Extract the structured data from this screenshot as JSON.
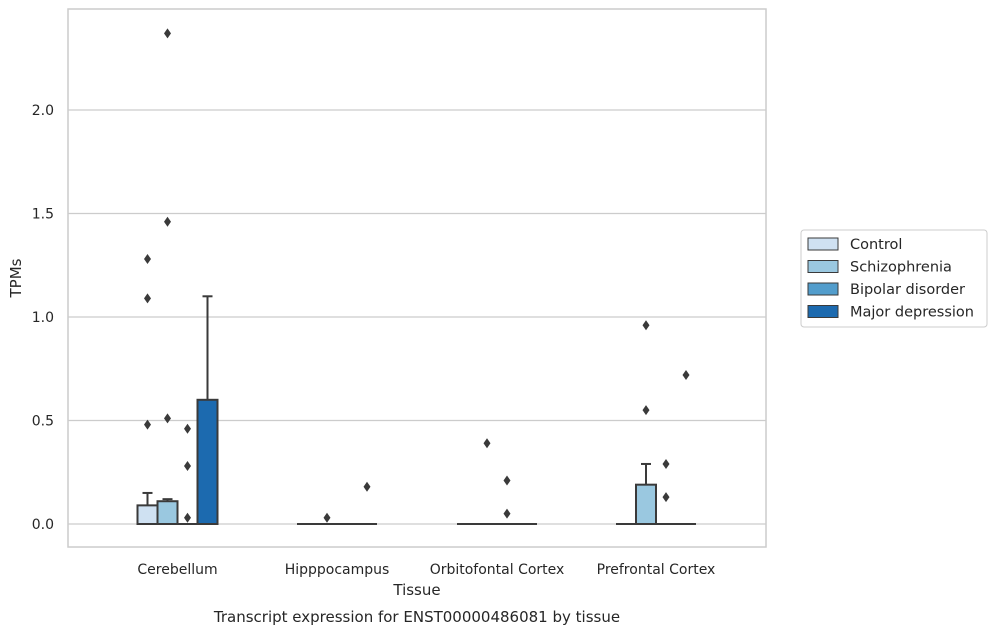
{
  "chart_data": {
    "type": "box",
    "xlabel": "Tissue",
    "ylabel": "TPMs",
    "caption": "Transcript expression for ENST00000486081 by tissue",
    "ylim": [
      -0.115,
      2.5
    ],
    "yticks": [
      0.0,
      0.5,
      1.0,
      1.5,
      2.0
    ],
    "ytick_labels": [
      "0.0",
      "0.5",
      "1.0",
      "1.5",
      "2.0"
    ],
    "grid": "horizontal",
    "legend_position": "right",
    "categories": [
      "Cerebellum",
      "Hipppocampus",
      "Orbitofontal Cortex",
      "Prefrontal Cortex"
    ],
    "series": [
      {
        "name": "Control",
        "color": "#cfe1f2",
        "boxes": [
          {
            "q1": 0.0,
            "median": 0.0,
            "q3": 0.09,
            "whisker_low": 0.0,
            "whisker_high": 0.15,
            "outliers": [
              1.28,
              1.09,
              0.48
            ]
          },
          {
            "q1": 0.0,
            "median": 0.0,
            "q3": 0.0,
            "whisker_low": 0.0,
            "whisker_high": 0.0,
            "outliers": []
          },
          {
            "q1": 0.0,
            "median": 0.0,
            "q3": 0.0,
            "whisker_low": 0.0,
            "whisker_high": 0.0,
            "outliers": []
          },
          {
            "q1": 0.0,
            "median": 0.0,
            "q3": 0.0,
            "whisker_low": 0.0,
            "whisker_high": 0.0,
            "outliers": []
          }
        ]
      },
      {
        "name": "Schizophrenia",
        "color": "#9ac8e0",
        "boxes": [
          {
            "q1": 0.0,
            "median": 0.0,
            "q3": 0.11,
            "whisker_low": 0.0,
            "whisker_high": 0.12,
            "outliers": [
              2.37,
              1.46,
              0.51
            ]
          },
          {
            "q1": 0.0,
            "median": 0.0,
            "q3": 0.0,
            "whisker_low": 0.0,
            "whisker_high": 0.0,
            "outliers": [
              0.03
            ]
          },
          {
            "q1": 0.0,
            "median": 0.0,
            "q3": 0.0,
            "whisker_low": 0.0,
            "whisker_high": 0.0,
            "outliers": [
              0.39
            ]
          },
          {
            "q1": 0.0,
            "median": 0.0,
            "q3": 0.19,
            "whisker_low": 0.0,
            "whisker_high": 0.29,
            "outliers": [
              0.96,
              0.55
            ]
          }
        ]
      },
      {
        "name": "Bipolar disorder",
        "color": "#529dcc",
        "boxes": [
          {
            "q1": 0.0,
            "median": 0.0,
            "q3": 0.0,
            "whisker_low": 0.0,
            "whisker_high": 0.0,
            "outliers": [
              0.46,
              0.28,
              0.03
            ]
          },
          {
            "q1": 0.0,
            "median": 0.0,
            "q3": 0.0,
            "whisker_low": 0.0,
            "whisker_high": 0.0,
            "outliers": []
          },
          {
            "q1": 0.0,
            "median": 0.0,
            "q3": 0.0,
            "whisker_low": 0.0,
            "whisker_high": 0.0,
            "outliers": [
              0.21,
              0.05
            ]
          },
          {
            "q1": 0.0,
            "median": 0.0,
            "q3": 0.0,
            "whisker_low": 0.0,
            "whisker_high": 0.0,
            "outliers": [
              0.29,
              0.13
            ]
          }
        ]
      },
      {
        "name": "Major depression",
        "color": "#1c6aaf",
        "boxes": [
          {
            "q1": 0.0,
            "median": 0.0,
            "q3": 0.6,
            "whisker_low": 0.0,
            "whisker_high": 1.1,
            "outliers": []
          },
          {
            "q1": 0.0,
            "median": 0.0,
            "q3": 0.0,
            "whisker_low": 0.0,
            "whisker_high": 0.0,
            "outliers": [
              0.18
            ]
          },
          {
            "q1": 0.0,
            "median": 0.0,
            "q3": 0.0,
            "whisker_low": 0.0,
            "whisker_high": 0.0,
            "outliers": []
          },
          {
            "q1": 0.0,
            "median": 0.0,
            "q3": 0.0,
            "whisker_low": 0.0,
            "whisker_high": 0.0,
            "outliers": [
              0.72
            ]
          }
        ]
      }
    ]
  }
}
